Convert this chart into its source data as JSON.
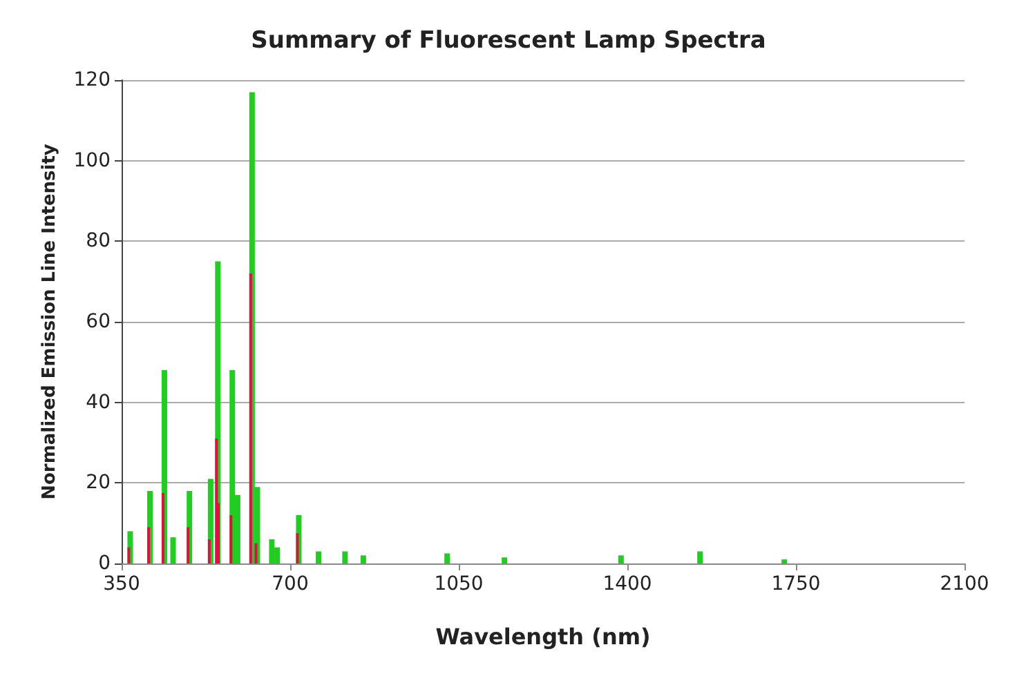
{
  "chart_data": {
    "type": "bar",
    "title": "Summary of Fluorescent Lamp Spectra",
    "xlabel": "Wavelength (nm)",
    "ylabel": "Normalized Emission Line Intensity",
    "series": [
      {
        "color": "#22cc22",
        "x": [
          365,
          406,
          436,
          454,
          488,
          532,
          547,
          577,
          588,
          618,
          629,
          659,
          670,
          715,
          756,
          811,
          849,
          1023,
          1142,
          1384,
          1548,
          1723
        ],
        "values": [
          8,
          18,
          48,
          6.5,
          18,
          21,
          75,
          48,
          17,
          117,
          19,
          6,
          4,
          12,
          3,
          3,
          2,
          2.5,
          1.5,
          2,
          3,
          1
        ]
      },
      {
        "color": "#dd1144",
        "x": [
          365,
          406,
          436,
          488,
          532,
          547,
          551,
          577,
          618,
          629,
          715
        ],
        "values": [
          4,
          9,
          17.5,
          9,
          6,
          31,
          15,
          12,
          72,
          5,
          7.5
        ]
      }
    ],
    "xlim": [
      350,
      2100
    ],
    "xticks": [
      350,
      700,
      1050,
      1400,
      1750,
      2100
    ],
    "ylim": [
      0,
      120
    ],
    "yticks": [
      0,
      20,
      40,
      60,
      80,
      100,
      120
    ],
    "grid": "y"
  }
}
